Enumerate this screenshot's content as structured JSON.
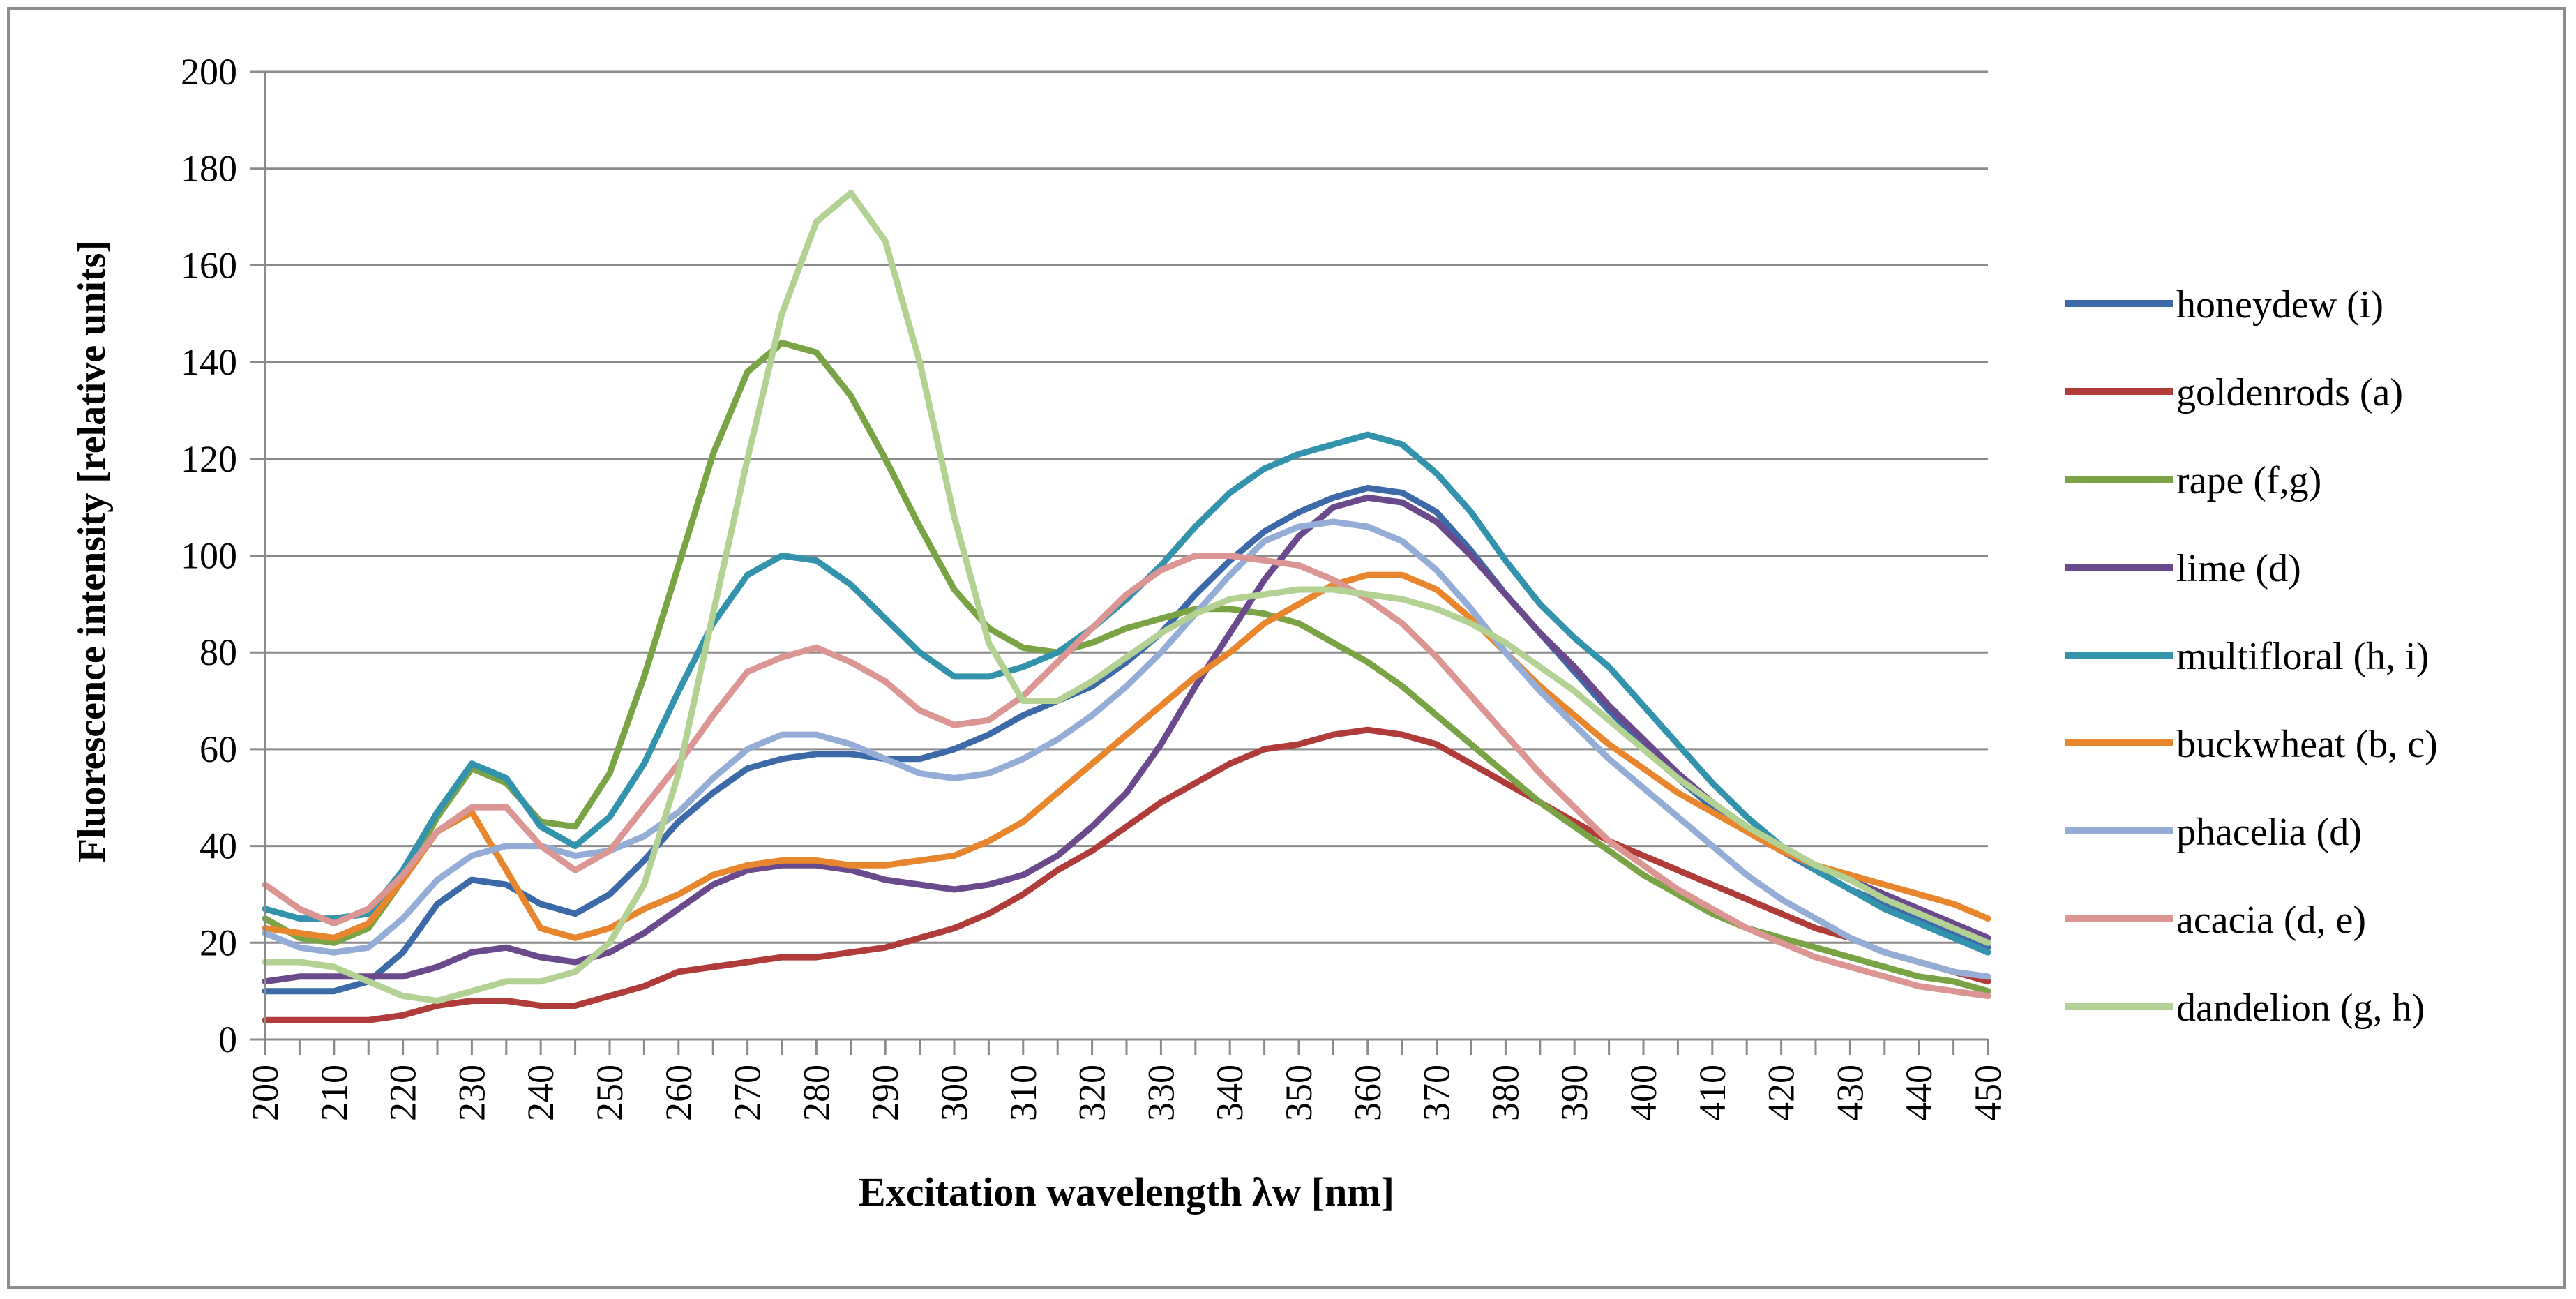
{
  "chart_data": {
    "type": "line",
    "title": "",
    "xlabel": "Excitation  wavelength  λw [nm]",
    "ylabel": "Fluorescence intensity [relative units]",
    "xlim": [
      200,
      450
    ],
    "ylim": [
      0,
      200
    ],
    "x_ticks": [
      200,
      210,
      220,
      230,
      240,
      250,
      260,
      270,
      280,
      290,
      300,
      310,
      320,
      330,
      340,
      350,
      360,
      370,
      380,
      390,
      400,
      410,
      420,
      430,
      440,
      450
    ],
    "y_ticks": [
      0,
      20,
      40,
      60,
      80,
      100,
      120,
      140,
      160,
      180,
      200
    ],
    "grid": "horizontal",
    "legend_position": "right",
    "x": [
      200,
      205,
      210,
      215,
      220,
      225,
      230,
      235,
      240,
      245,
      250,
      255,
      260,
      265,
      270,
      275,
      280,
      285,
      290,
      295,
      300,
      305,
      310,
      315,
      320,
      325,
      330,
      335,
      340,
      345,
      350,
      355,
      360,
      365,
      370,
      375,
      380,
      385,
      390,
      395,
      400,
      405,
      410,
      415,
      420,
      425,
      430,
      435,
      440,
      445,
      450
    ],
    "series": [
      {
        "name": "honeydew (i)",
        "color": "#3c6aa8",
        "values": [
          10,
          10,
          10,
          12,
          18,
          28,
          33,
          32,
          28,
          26,
          30,
          37,
          45,
          51,
          56,
          58,
          59,
          59,
          58,
          58,
          60,
          63,
          67,
          70,
          73,
          78,
          84,
          92,
          99,
          105,
          109,
          112,
          114,
          113,
          109,
          101,
          92,
          84,
          76,
          68,
          61,
          54,
          48,
          43,
          39,
          35,
          31,
          28,
          25,
          22,
          19
        ]
      },
      {
        "name": "goldenrods (a)",
        "color": "#b03c3a",
        "values": [
          4,
          4,
          4,
          4,
          5,
          7,
          8,
          8,
          7,
          7,
          9,
          11,
          14,
          15,
          16,
          17,
          17,
          18,
          19,
          21,
          23,
          26,
          30,
          35,
          39,
          44,
          49,
          53,
          57,
          60,
          61,
          63,
          64,
          63,
          61,
          57,
          53,
          49,
          45,
          41,
          38,
          35,
          32,
          29,
          26,
          23,
          21,
          18,
          16,
          14,
          12
        ]
      },
      {
        "name": "rape (f,g)",
        "color": "#79a345",
        "values": [
          25,
          21,
          20,
          23,
          33,
          46,
          56,
          53,
          45,
          44,
          55,
          75,
          98,
          121,
          138,
          144,
          142,
          133,
          120,
          106,
          93,
          85,
          81,
          80,
          82,
          85,
          87,
          89,
          89,
          88,
          86,
          82,
          78,
          73,
          67,
          61,
          55,
          49,
          44,
          39,
          34,
          30,
          26,
          23,
          21,
          19,
          17,
          15,
          13,
          12,
          10
        ]
      },
      {
        "name": "lime (d)",
        "color": "#6a4a8c",
        "values": [
          12,
          13,
          13,
          13,
          13,
          15,
          18,
          19,
          17,
          16,
          18,
          22,
          27,
          32,
          35,
          36,
          36,
          35,
          33,
          32,
          31,
          32,
          34,
          38,
          44,
          51,
          61,
          73,
          84,
          95,
          104,
          110,
          112,
          111,
          107,
          100,
          92,
          84,
          77,
          69,
          62,
          55,
          49,
          44,
          40,
          36,
          33,
          30,
          27,
          24,
          21
        ]
      },
      {
        "name": "multifloral  (h, i)",
        "color": "#3393ad",
        "values": [
          27,
          25,
          25,
          26,
          35,
          47,
          57,
          54,
          44,
          40,
          46,
          57,
          72,
          86,
          96,
          100,
          99,
          94,
          87,
          80,
          75,
          75,
          77,
          80,
          85,
          91,
          98,
          106,
          113,
          118,
          121,
          123,
          125,
          123,
          117,
          109,
          99,
          90,
          83,
          77,
          69,
          61,
          53,
          46,
          40,
          35,
          31,
          27,
          24,
          21,
          18
        ]
      },
      {
        "name": "buckwheat (b, c)",
        "color": "#e8862e",
        "values": [
          23,
          22,
          21,
          24,
          33,
          43,
          47,
          35,
          23,
          21,
          23,
          27,
          30,
          34,
          36,
          37,
          37,
          36,
          36,
          37,
          38,
          41,
          45,
          51,
          57,
          63,
          69,
          75,
          80,
          86,
          90,
          94,
          96,
          96,
          93,
          87,
          80,
          73,
          67,
          61,
          56,
          51,
          47,
          43,
          39,
          36,
          34,
          32,
          30,
          28,
          25
        ]
      },
      {
        "name": "phacelia (d)",
        "color": "#94add6",
        "values": [
          22,
          19,
          18,
          19,
          25,
          33,
          38,
          40,
          40,
          38,
          39,
          42,
          47,
          54,
          60,
          63,
          63,
          61,
          58,
          55,
          54,
          55,
          58,
          62,
          67,
          73,
          80,
          88,
          96,
          103,
          106,
          107,
          106,
          103,
          97,
          89,
          80,
          72,
          65,
          58,
          52,
          46,
          40,
          34,
          29,
          25,
          21,
          18,
          16,
          14,
          13
        ]
      },
      {
        "name": "acacia (d, e)",
        "color": "#db9593",
        "values": [
          32,
          27,
          24,
          27,
          34,
          43,
          48,
          48,
          40,
          35,
          39,
          48,
          57,
          67,
          76,
          79,
          81,
          78,
          74,
          68,
          65,
          66,
          71,
          78,
          85,
          92,
          97,
          100,
          100,
          99,
          98,
          95,
          91,
          86,
          79,
          71,
          63,
          55,
          48,
          41,
          36,
          31,
          27,
          23,
          20,
          17,
          15,
          13,
          11,
          10,
          9
        ]
      },
      {
        "name": "dandelion (g, h)",
        "color": "#b2d193",
        "values": [
          16,
          16,
          15,
          12,
          9,
          8,
          10,
          12,
          12,
          14,
          20,
          32,
          55,
          88,
          120,
          150,
          169,
          175,
          165,
          140,
          108,
          82,
          70,
          70,
          74,
          79,
          84,
          88,
          91,
          92,
          93,
          93,
          92,
          91,
          89,
          86,
          82,
          77,
          72,
          66,
          60,
          54,
          49,
          44,
          40,
          36,
          33,
          29,
          26,
          23,
          20
        ]
      }
    ]
  }
}
